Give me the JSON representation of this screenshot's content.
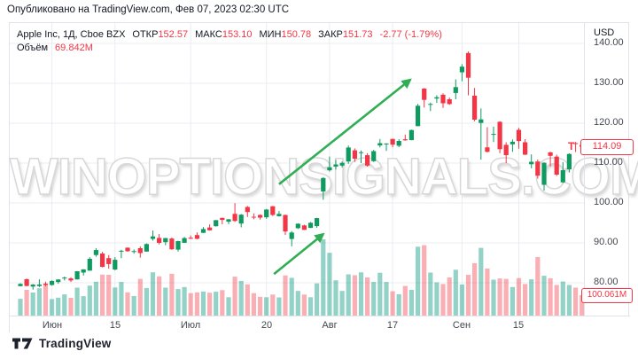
{
  "published_line": "Опубликовано на TradingView.com, Фев 07, 2023 02:30 UTC",
  "legend": {
    "symbol": "Apple Inc, 1Д, Cboe BZX",
    "fields": [
      {
        "label": "ОТКР",
        "value": "152.57"
      },
      {
        "label": "МАКС",
        "value": "153.10"
      },
      {
        "label": "МИН",
        "value": "150.78"
      },
      {
        "label": "ЗАКР",
        "value": "151.73"
      }
    ],
    "change": "-2.77 (-1.79%)",
    "volume_label": "Объём",
    "volume_value": "69.842M"
  },
  "watermark": "WINOPTIONSIGNALS.COM",
  "price_axis": {
    "currency": "USD",
    "ticks": [
      140,
      130,
      120,
      110,
      100,
      90,
      80
    ],
    "last_price": 114.09,
    "last_price_label": "114.09",
    "marker": "T",
    "last_volume_label": "100.061M"
  },
  "time_axis": {
    "ticks": [
      {
        "i": 5,
        "label": "Июн"
      },
      {
        "i": 15,
        "label": "15"
      },
      {
        "i": 27,
        "label": "Июл"
      },
      {
        "i": 39,
        "label": "20"
      },
      {
        "i": 49,
        "label": "Авг"
      },
      {
        "i": 59,
        "label": "17"
      },
      {
        "i": 70,
        "label": "Сен"
      },
      {
        "i": 79,
        "label": "15"
      }
    ]
  },
  "footer": {
    "brand": "TradingView"
  },
  "colors": {
    "up": "#0f9b60",
    "down": "#f23645",
    "volume_up": "rgba(15,155,129,0.45)",
    "volume_down": "rgba(242,54,69,0.40)",
    "arrow": "#2fae54",
    "grid": "#e9ecf2",
    "frame_border": "#e0e3eb",
    "accent_red": "#f23645",
    "text_dark": "#131722"
  },
  "chart_data": {
    "type": "candlestick+volume",
    "symbol": "Apple Inc",
    "interval": "1Д",
    "exchange": "Cboe BZX",
    "ylabel": "USD",
    "price_range_visible": [
      76,
      145
    ],
    "grid": true,
    "columns": [
      "date",
      "open",
      "high",
      "low",
      "close",
      "volume_m"
    ],
    "candles": [
      [
        "2020-05-22",
        79.17,
        79.88,
        79.13,
        79.72,
        82
      ],
      [
        "2020-05-26",
        80.88,
        81.06,
        79.12,
        79.18,
        126
      ],
      [
        "2020-05-27",
        79.04,
        79.68,
        78.27,
        79.53,
        113
      ],
      [
        "2020-05-28",
        79.19,
        80.86,
        78.91,
        79.56,
        134
      ],
      [
        "2020-05-29",
        79.81,
        80.29,
        79.12,
        79.49,
        153
      ],
      [
        "2020-06-01",
        79.44,
        80.59,
        79.3,
        80.46,
        81
      ],
      [
        "2020-06-02",
        80.19,
        80.86,
        79.73,
        80.83,
        88
      ],
      [
        "2020-06-03",
        81.17,
        81.55,
        80.57,
        81.28,
        104
      ],
      [
        "2020-06-04",
        81.1,
        81.4,
        80.19,
        80.58,
        87
      ],
      [
        "2020-06-05",
        80.84,
        82.94,
        80.81,
        82.88,
        137
      ],
      [
        "2020-06-08",
        82.56,
        83.4,
        81.83,
        83.36,
        95
      ],
      [
        "2020-06-09",
        83.04,
        86.4,
        83.0,
        85.99,
        147
      ],
      [
        "2020-06-10",
        86.97,
        88.69,
        86.52,
        88.21,
        166
      ],
      [
        "2020-06-11",
        87.33,
        87.76,
        83.87,
        83.97,
        201
      ],
      [
        "2020-06-12",
        86.18,
        86.95,
        83.56,
        84.7,
        200
      ],
      [
        "2020-06-15",
        83.31,
        86.42,
        83.14,
        85.75,
        138
      ],
      [
        "2020-06-16",
        87.87,
        88.3,
        86.18,
        88.02,
        165
      ],
      [
        "2020-06-17",
        88.79,
        88.85,
        87.77,
        87.9,
        114
      ],
      [
        "2020-06-18",
        87.85,
        88.36,
        87.31,
        87.93,
        96
      ],
      [
        "2020-06-19",
        88.66,
        89.14,
        86.29,
        87.43,
        180
      ],
      [
        "2020-06-22",
        87.83,
        89.87,
        87.79,
        89.72,
        135
      ],
      [
        "2020-06-23",
        91.0,
        93.1,
        90.57,
        91.63,
        212
      ],
      [
        "2020-06-24",
        91.25,
        92.2,
        89.63,
        90.01,
        192
      ],
      [
        "2020-06-25",
        90.18,
        91.25,
        89.39,
        91.21,
        137
      ],
      [
        "2020-06-26",
        91.1,
        91.33,
        88.25,
        88.41,
        205
      ],
      [
        "2020-06-29",
        88.31,
        90.54,
        87.82,
        90.44,
        130
      ],
      [
        "2020-06-30",
        90.02,
        91.5,
        90.0,
        91.2,
        140
      ],
      [
        "2020-07-01",
        91.28,
        91.84,
        90.98,
        91.03,
        110
      ],
      [
        "2020-07-02",
        91.96,
        92.62,
        90.91,
        91.03,
        114
      ],
      [
        "2020-07-06",
        92.5,
        93.94,
        92.47,
        93.46,
        118
      ],
      [
        "2020-07-07",
        93.85,
        94.65,
        93.06,
        93.17,
        112
      ],
      [
        "2020-07-08",
        94.18,
        95.76,
        94.09,
        95.68,
        117
      ],
      [
        "2020-07-09",
        96.26,
        96.32,
        94.67,
        95.75,
        125
      ],
      [
        "2020-07-10",
        95.33,
        95.98,
        94.71,
        95.92,
        90
      ],
      [
        "2020-07-13",
        97.26,
        99.96,
        95.26,
        95.48,
        191
      ],
      [
        "2020-07-14",
        94.84,
        97.25,
        93.88,
        97.06,
        170
      ],
      [
        "2020-07-15",
        98.99,
        99.25,
        96.49,
        97.72,
        153
      ],
      [
        "2020-07-16",
        96.56,
        97.4,
        95.9,
        96.52,
        110
      ],
      [
        "2020-07-17",
        96.99,
        97.15,
        95.84,
        96.33,
        92
      ],
      [
        "2020-07-20",
        96.42,
        98.5,
        96.06,
        98.36,
        90
      ],
      [
        "2020-07-21",
        99.17,
        99.25,
        96.74,
        97.0,
        103
      ],
      [
        "2020-07-22",
        96.69,
        97.97,
        96.6,
        97.27,
        89
      ],
      [
        "2020-07-23",
        96.99,
        97.08,
        92.01,
        92.85,
        197
      ],
      [
        "2020-07-24",
        90.99,
        92.97,
        89.14,
        92.61,
        185
      ],
      [
        "2020-07-27",
        93.71,
        94.91,
        93.48,
        94.81,
        121
      ],
      [
        "2020-07-28",
        94.37,
        94.55,
        93.25,
        93.25,
        103
      ],
      [
        "2020-07-29",
        93.75,
        95.23,
        93.71,
        95.04,
        90
      ],
      [
        "2020-07-30",
        94.19,
        96.3,
        93.77,
        96.19,
        158
      ],
      [
        "2020-07-31",
        102.88,
        106.42,
        100.82,
        106.26,
        374
      ],
      [
        "2020-08-03",
        108.2,
        111.64,
        107.89,
        108.94,
        308
      ],
      [
        "2020-08-04",
        109.13,
        110.79,
        108.39,
        109.67,
        173
      ],
      [
        "2020-08-05",
        109.38,
        110.39,
        108.9,
        110.06,
        121
      ],
      [
        "2020-08-06",
        110.4,
        114.41,
        109.8,
        113.9,
        202
      ],
      [
        "2020-08-07",
        113.21,
        113.68,
        110.29,
        111.11,
        198
      ],
      [
        "2020-08-10",
        112.6,
        113.18,
        110.0,
        112.73,
        212
      ],
      [
        "2020-08-11",
        111.97,
        112.48,
        109.11,
        109.38,
        187
      ],
      [
        "2020-08-12",
        110.5,
        113.28,
        110.3,
        113.01,
        165
      ],
      [
        "2020-08-13",
        114.43,
        116.04,
        113.93,
        115.01,
        210
      ],
      [
        "2020-08-14",
        114.83,
        115.0,
        113.04,
        114.91,
        165
      ],
      [
        "2020-08-17",
        116.06,
        116.09,
        113.96,
        114.61,
        119
      ],
      [
        "2020-08-18",
        114.35,
        116.0,
        114.01,
        115.56,
        105
      ],
      [
        "2020-08-19",
        115.98,
        117.16,
        115.61,
        115.71,
        145
      ],
      [
        "2020-08-20",
        115.75,
        118.39,
        115.73,
        118.28,
        126
      ],
      [
        "2020-08-21",
        119.26,
        124.87,
        119.25,
        124.37,
        338
      ],
      [
        "2020-08-24",
        128.7,
        128.79,
        123.94,
        125.86,
        345
      ],
      [
        "2020-08-25",
        124.7,
        125.18,
        123.05,
        124.82,
        211
      ],
      [
        "2020-08-26",
        126.18,
        126.99,
        125.08,
        126.52,
        163
      ],
      [
        "2020-08-27",
        127.14,
        127.49,
        123.83,
        125.01,
        155
      ],
      [
        "2020-08-28",
        126.01,
        126.44,
        124.58,
        124.81,
        187
      ],
      [
        "2020-08-31",
        127.58,
        131.0,
        126.0,
        129.04,
        225
      ],
      [
        "2020-09-01",
        132.76,
        134.8,
        130.53,
        134.18,
        152
      ],
      [
        "2020-09-02",
        137.59,
        137.98,
        127.0,
        131.4,
        200
      ],
      [
        "2020-09-03",
        126.91,
        128.84,
        120.5,
        120.88,
        257
      ],
      [
        "2020-09-04",
        120.07,
        123.7,
        110.89,
        120.96,
        332
      ],
      [
        "2020-09-08",
        113.95,
        118.99,
        112.68,
        112.82,
        231
      ],
      [
        "2020-09-09",
        117.26,
        119.14,
        115.26,
        117.32,
        176
      ],
      [
        "2020-09-10",
        120.36,
        120.5,
        112.5,
        113.49,
        182
      ],
      [
        "2020-09-11",
        114.57,
        115.23,
        110.0,
        112.0,
        180
      ],
      [
        "2020-09-14",
        114.72,
        115.93,
        112.8,
        115.36,
        140
      ],
      [
        "2020-09-15",
        118.33,
        118.83,
        113.61,
        115.54,
        184
      ],
      [
        "2020-09-16",
        115.23,
        116.0,
        112.04,
        112.13,
        155
      ],
      [
        "2020-09-17",
        109.72,
        112.2,
        108.71,
        110.34,
        178
      ],
      [
        "2020-09-18",
        110.4,
        110.88,
        106.09,
        106.84,
        287
      ],
      [
        "2020-09-21",
        104.54,
        110.19,
        103.1,
        110.08,
        195
      ],
      [
        "2020-09-22",
        112.68,
        112.86,
        109.16,
        111.81,
        183
      ],
      [
        "2020-09-23",
        111.62,
        112.11,
        106.77,
        107.12,
        150
      ],
      [
        "2020-09-24",
        105.17,
        110.25,
        105.0,
        108.22,
        167
      ],
      [
        "2020-09-25",
        108.43,
        112.44,
        107.67,
        112.28,
        150
      ],
      [
        "2020-09-28",
        115.01,
        115.32,
        112.78,
        114.96,
        137
      ],
      [
        "2020-09-29",
        114.55,
        115.31,
        113.57,
        114.09,
        100.061
      ]
    ],
    "annotations": [
      {
        "type": "arrow",
        "from": [
          41,
          104.7
        ],
        "to": [
          61.8,
          130.9
        ]
      },
      {
        "type": "arrow",
        "from": [
          40.2,
          82.2
        ],
        "to": [
          48,
          92.2
        ]
      }
    ]
  }
}
